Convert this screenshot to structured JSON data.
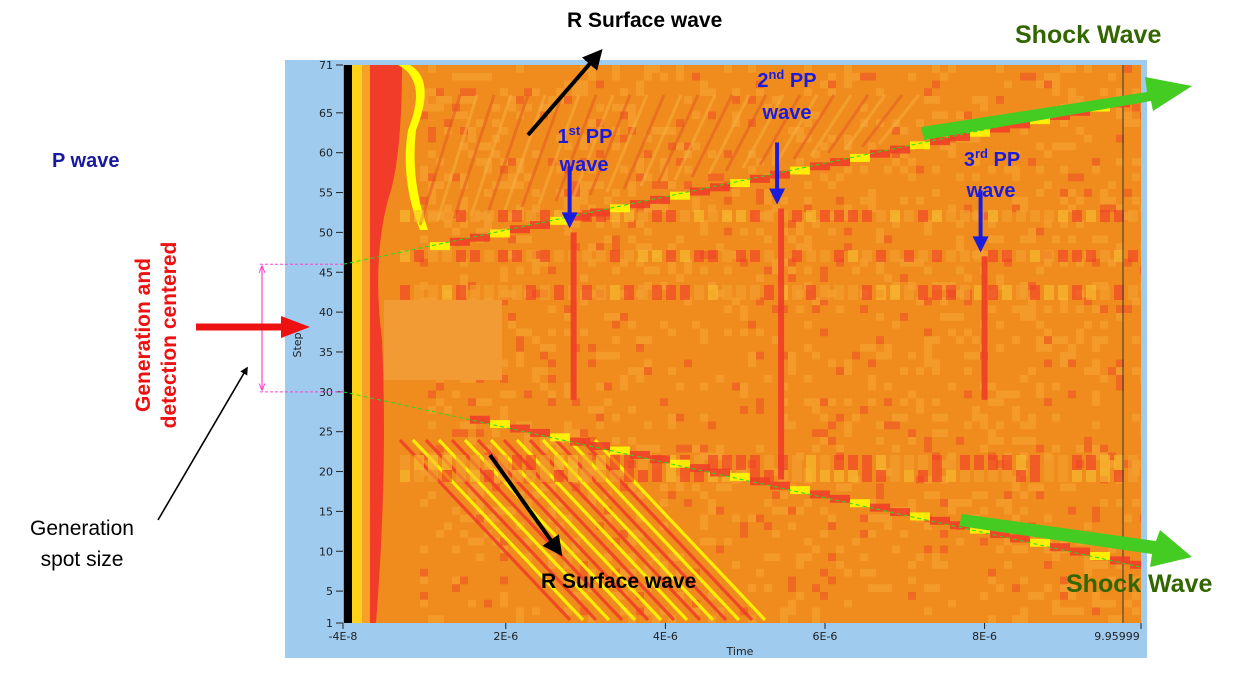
{
  "chart_data": {
    "type": "heatmap",
    "xlabel": "Time",
    "ylabel": "Step",
    "x_ticks": [
      "-4E-8",
      "2E-6",
      "4E-6",
      "6E-6",
      "8E-6",
      "9.95999"
    ],
    "x_tick_values": [
      -4e-08,
      2e-06,
      4e-06,
      6e-06,
      8e-06,
      9.96e-06
    ],
    "xlim": [
      -4e-08,
      9.96e-06
    ],
    "y_ticks": [
      "1",
      "5",
      "10",
      "15",
      "20",
      "25",
      "30",
      "35",
      "40",
      "45",
      "50",
      "55",
      "60",
      "65",
      "71"
    ],
    "y_tick_values": [
      1,
      5,
      10,
      15,
      20,
      25,
      30,
      35,
      40,
      45,
      50,
      55,
      60,
      65,
      71
    ],
    "ylim": [
      1,
      71
    ],
    "colors": {
      "plot_frame": "#9fcbef",
      "background": "#f08c1e",
      "hot": "#f03c28",
      "bright": "#ffff00",
      "shock_arrow": "#44cc22",
      "pp_arrow": "#1c1cdd",
      "generation_arrow": "#ee1111",
      "spot_marker": "#ff44cc",
      "shock_front": "#22dd22"
    },
    "pp_waves": [
      {
        "time": 2.85e-06,
        "step_top": 50,
        "step_bottom": 29
      },
      {
        "time": 5.45e-06,
        "step_top": 53,
        "step_bottom": 19
      },
      {
        "time": 8e-06,
        "step_top": 47,
        "step_bottom": 29
      }
    ],
    "shock_fronts": [
      {
        "from": {
          "time": -4e-08,
          "step": 46
        },
        "to": {
          "time": 9.96e-06,
          "step": 67
        }
      },
      {
        "from": {
          "time": -4e-08,
          "step": 30
        },
        "to": {
          "time": 9.96e-06,
          "step": 8
        }
      }
    ],
    "generation_spot": {
      "step_top": 46,
      "step_bottom": 30
    }
  },
  "annotations": {
    "r_surface_top": "R Surface wave",
    "r_surface_bottom": "R Surface wave",
    "shock_top": "Shock Wave",
    "shock_bottom": "Shock Wave",
    "p_wave": "P wave",
    "pp1_num": "1",
    "pp1_sup": "st",
    "pp2_num": "2",
    "pp2_sup": "nd",
    "pp3_num": "3",
    "pp3_sup": "rd",
    "pp_suffix": " PP",
    "pp_word": "wave",
    "generation_line1": "Generation and",
    "generation_line2": "detection centered",
    "spot_line1": "Generation",
    "spot_line2": "spot size"
  }
}
